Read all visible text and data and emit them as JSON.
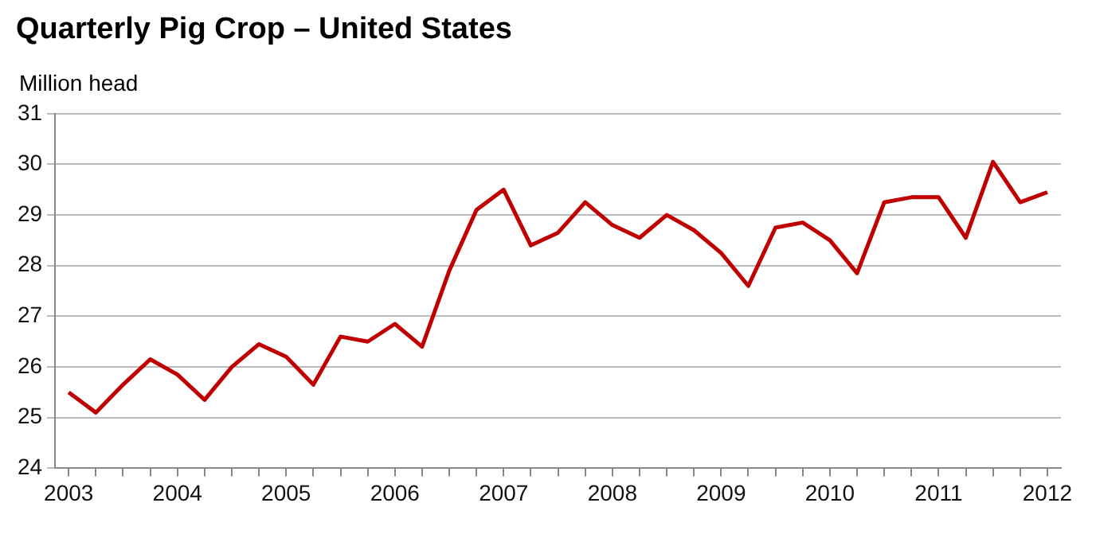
{
  "chart_data": {
    "type": "line",
    "title": "Quarterly Pig Crop – United States",
    "ylabel": "Million head",
    "categories": [
      "2003",
      null,
      null,
      null,
      "2004",
      null,
      null,
      null,
      "2005",
      null,
      null,
      null,
      "2006",
      null,
      null,
      null,
      "2007",
      null,
      null,
      null,
      "2008",
      null,
      null,
      null,
      "2009",
      null,
      null,
      null,
      "2010",
      null,
      null,
      null,
      "2011",
      null,
      null,
      null,
      "2012"
    ],
    "series": [
      {
        "color": "#c00000",
        "values": [
          25.5,
          25.1,
          25.65,
          26.15,
          25.85,
          25.35,
          26.0,
          26.45,
          26.2,
          25.65,
          26.6,
          26.5,
          26.85,
          26.4,
          27.9,
          29.1,
          29.5,
          28.4,
          28.65,
          29.25,
          28.8,
          28.55,
          29.0,
          28.7,
          28.25,
          27.6,
          28.75,
          28.85,
          28.5,
          27.85,
          29.25,
          29.35,
          29.35,
          28.55,
          30.05,
          29.25,
          29.45
        ]
      }
    ],
    "ylim": [
      24,
      31
    ],
    "yticks": [
      24,
      25,
      26,
      27,
      28,
      29,
      30,
      31
    ],
    "grid": "y",
    "legend": false,
    "marker": "none"
  }
}
